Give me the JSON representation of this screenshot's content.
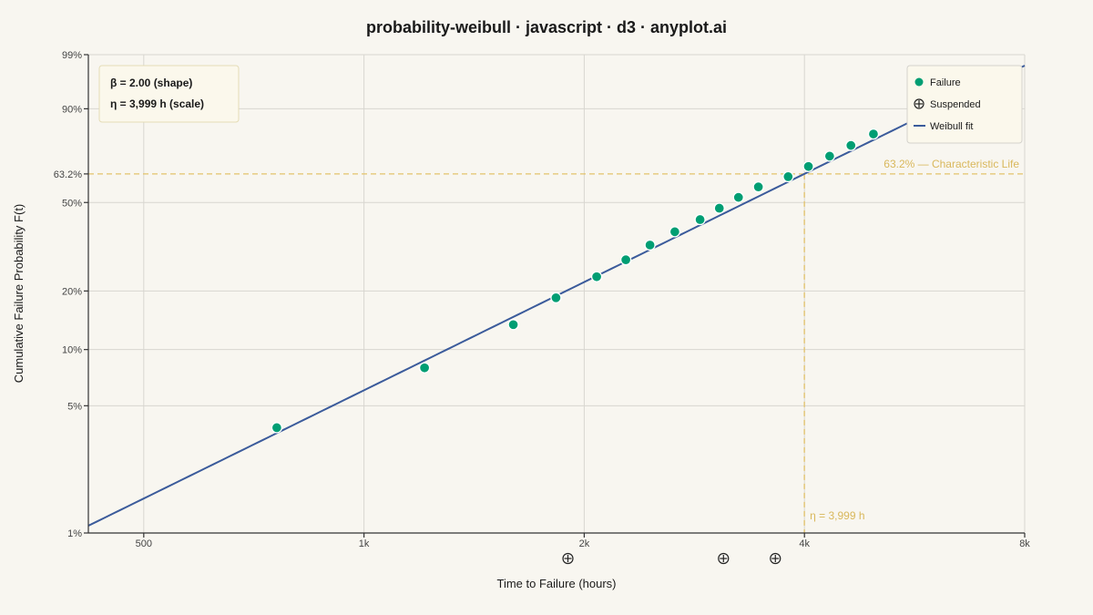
{
  "chart_data": {
    "type": "scatter",
    "title": "probability-weibull · javascript · d3 · anyplot.ai",
    "xlabel": "Time to Failure (hours)",
    "ylabel": "Cumulative Failure Probability F(t)",
    "x_scale": "log",
    "y_scale": "weibull",
    "xlim": [
      420,
      8000
    ],
    "ylim": [
      0.01,
      0.99
    ],
    "x_ticks": [
      {
        "value": 500,
        "label": "500"
      },
      {
        "value": 1000,
        "label": "1k"
      },
      {
        "value": 2000,
        "label": "2k"
      },
      {
        "value": 4000,
        "label": "4k"
      },
      {
        "value": 8000,
        "label": "8k"
      }
    ],
    "y_ticks": [
      {
        "value": 0.01,
        "label": "1%"
      },
      {
        "value": 0.05,
        "label": "5%"
      },
      {
        "value": 0.1,
        "label": "10%"
      },
      {
        "value": 0.2,
        "label": "20%"
      },
      {
        "value": 0.5,
        "label": "50%"
      },
      {
        "value": 0.632,
        "label": "63.2%"
      },
      {
        "value": 0.9,
        "label": "90%"
      },
      {
        "value": 0.99,
        "label": "99%"
      }
    ],
    "grid": true,
    "series": [
      {
        "name": "Failure",
        "kind": "points",
        "color": "#009e73",
        "x": [
          760,
          1210,
          1600,
          1830,
          2080,
          2280,
          2460,
          2660,
          2880,
          3060,
          3250,
          3460,
          3800,
          4050,
          4330,
          4630,
          4970
        ],
        "y": [
          0.038,
          0.08,
          0.135,
          0.185,
          0.235,
          0.283,
          0.331,
          0.379,
          0.427,
          0.475,
          0.523,
          0.571,
          0.619,
          0.667,
          0.715,
          0.763,
          0.811
        ]
      },
      {
        "name": "Suspended",
        "kind": "suspended",
        "color": "#222222",
        "x": [
          1900,
          3100,
          3650
        ]
      },
      {
        "name": "Weibull fit",
        "kind": "line",
        "color": "#3b5b9b",
        "beta": 2.0,
        "eta": 3999
      }
    ],
    "reference_lines": {
      "y_value": 0.632,
      "y_label": "63.2% — Characteristic Life",
      "x_value": 3999,
      "x_label": "η = 3,999 h",
      "color": "#e3c36a"
    },
    "params_box": {
      "line1": "β = 2.00 (shape)",
      "line2": "η = 3,999 h (scale)"
    },
    "legend": {
      "placement": "top-right",
      "entries": [
        "Failure",
        "Suspended",
        "Weibull fit"
      ]
    }
  }
}
